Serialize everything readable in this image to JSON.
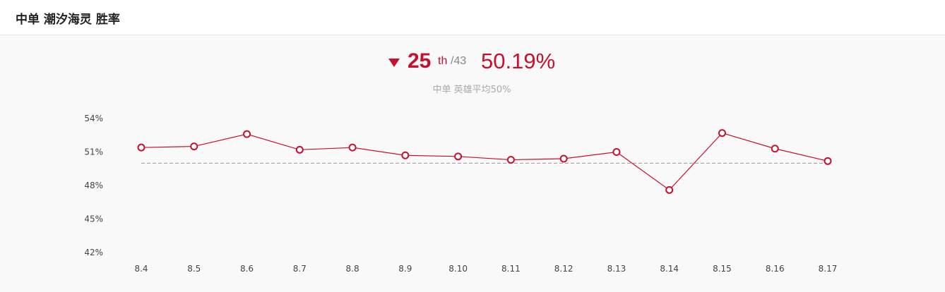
{
  "header": {
    "title": "中单 潮汐海灵 胜率"
  },
  "summary": {
    "rank": "25",
    "rank_suffix": "th",
    "rank_total": "/43",
    "win_rate": "50.19%",
    "trend": "down",
    "subtitle": "中单 英雄平均50%"
  },
  "colors": {
    "accent": "#c8102e",
    "line": "#c8102e",
    "average_line": "#999999",
    "muted_text": "#aaaaaa"
  },
  "chart_data": {
    "type": "line",
    "categories": [
      "8.4",
      "8.5",
      "8.6",
      "8.7",
      "8.8",
      "8.9",
      "8.10",
      "8.11",
      "8.12",
      "8.13",
      "8.14",
      "8.15",
      "8.16",
      "8.17"
    ],
    "series": [
      {
        "values": [
          51.4,
          51.5,
          52.6,
          51.2,
          51.4,
          50.7,
          50.6,
          50.3,
          50.4,
          51.0,
          47.6,
          52.7,
          51.3,
          50.19
        ]
      }
    ],
    "reference_line": 50,
    "y_ticks": [
      "54%",
      "51%",
      "48%",
      "45%",
      "42%"
    ],
    "ylim": [
      42,
      54
    ],
    "grid": false,
    "title": "",
    "xlabel": "",
    "ylabel": ""
  }
}
